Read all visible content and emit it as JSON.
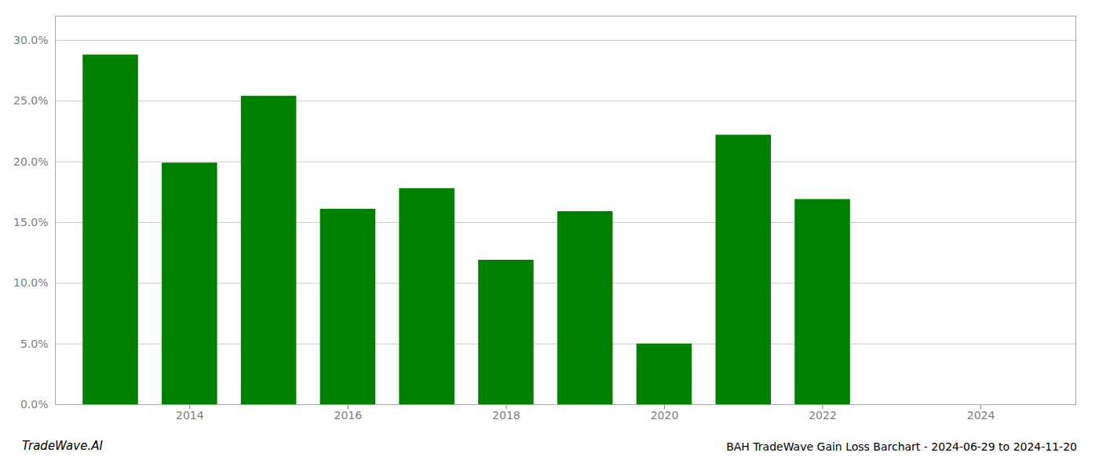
{
  "chart_data": {
    "type": "bar",
    "title": "BAH TradeWave Gain Loss Barchart - 2024-06-29 to 2024-11-20",
    "annotations": [
      "TradeWave.AI"
    ],
    "x": [
      2013,
      2014,
      2015,
      2016,
      2017,
      2018,
      2019,
      2020,
      2021,
      2022
    ],
    "values": [
      0.288,
      0.199,
      0.254,
      0.161,
      0.178,
      0.119,
      0.159,
      0.05,
      0.222,
      0.169
    ],
    "color": "#008000",
    "xlim": [
      2012.3,
      2025.2
    ],
    "xticks": [
      2014,
      2016,
      2018,
      2020,
      2022,
      2024
    ],
    "ylim": [
      0,
      0.32
    ],
    "yticks": [
      {
        "value": 0.0,
        "label": "0.0%"
      },
      {
        "value": 0.05,
        "label": "5.0%"
      },
      {
        "value": 0.1,
        "label": "10.0%"
      },
      {
        "value": 0.15,
        "label": "15.0%"
      },
      {
        "value": 0.2,
        "label": "20.0%"
      },
      {
        "value": 0.25,
        "label": "25.0%"
      },
      {
        "value": 0.3,
        "label": "30.0%"
      }
    ],
    "grid": true
  }
}
